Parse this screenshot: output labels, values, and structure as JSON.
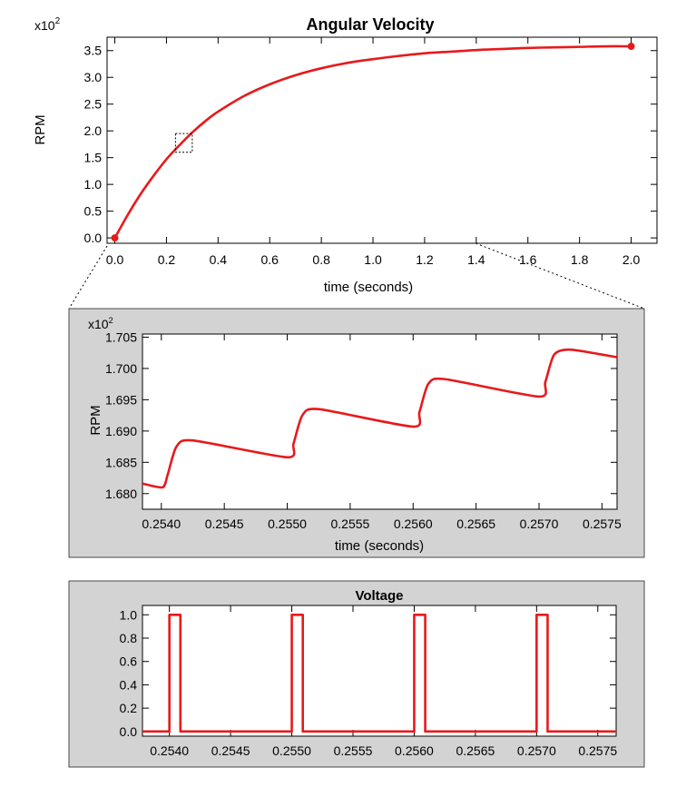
{
  "colors": {
    "series": "#e8191b",
    "panel_bg": "#d3d3d3",
    "panel_border": "#4a4a4a"
  },
  "chart_data": [
    {
      "type": "line",
      "title": "Angular Velocity",
      "xlabel": "time (seconds)",
      "ylabel": "RPM",
      "y_multiplier": "x10",
      "y_multiplier_exp": "2",
      "xlim": [
        -0.03,
        2.1
      ],
      "ylim": [
        -0.1,
        3.75
      ],
      "x_ticks": [
        0.0,
        0.2,
        0.4,
        0.6,
        0.8,
        1.0,
        1.2,
        1.4,
        1.6,
        1.8,
        2.0
      ],
      "y_ticks": [
        0.0,
        0.5,
        1.0,
        1.5,
        2.0,
        2.5,
        3.0,
        3.5
      ],
      "series": [
        {
          "x": [
            0.0,
            0.05,
            0.1,
            0.15,
            0.2,
            0.25,
            0.3,
            0.35,
            0.4,
            0.5,
            0.6,
            0.7,
            0.8,
            0.9,
            1.0,
            1.1,
            1.2,
            1.3,
            1.4,
            1.5,
            1.6,
            1.7,
            1.8,
            1.9,
            2.0
          ],
          "y": [
            0.0,
            0.43,
            0.82,
            1.16,
            1.47,
            1.73,
            1.97,
            2.18,
            2.36,
            2.65,
            2.87,
            3.04,
            3.17,
            3.27,
            3.34,
            3.4,
            3.45,
            3.48,
            3.51,
            3.53,
            3.55,
            3.56,
            3.57,
            3.58,
            3.58
          ]
        }
      ],
      "endpoints": [
        {
          "x": 0.0,
          "y": 0.0
        },
        {
          "x": 2.0,
          "y": 3.58
        }
      ],
      "zoom_box": {
        "x": [
          0.235,
          0.3
        ],
        "y": [
          1.6,
          1.95
        ]
      }
    },
    {
      "type": "line",
      "title": "",
      "xlabel": "time (seconds)",
      "ylabel": "RPM",
      "y_multiplier": "x10",
      "y_multiplier_exp": "2",
      "xlim": [
        0.25385,
        0.25762
      ],
      "ylim": [
        1.6775,
        1.7055
      ],
      "x_ticks": [
        "0.2540",
        "0.2545",
        "0.2550",
        "0.2555",
        "0.2560",
        "0.2565",
        "0.2570",
        "0.2575"
      ],
      "y_ticks": [
        "1.680",
        "1.685",
        "1.690",
        "1.695",
        "1.700",
        "1.705"
      ],
      "series": [
        {
          "x": [
            0.25385,
            0.25401,
            0.25405,
            0.25412,
            0.25425,
            0.255,
            0.25505,
            0.25512,
            0.25525,
            0.256,
            0.25605,
            0.25612,
            0.25625,
            0.257,
            0.25705,
            0.25712,
            0.25725,
            0.25762
          ],
          "y": [
            1.6816,
            1.681,
            1.683,
            1.6875,
            1.6885,
            1.6858,
            1.688,
            1.6925,
            1.6935,
            1.6907,
            1.693,
            1.6975,
            1.6983,
            1.6955,
            1.6978,
            1.7022,
            1.703,
            1.7018
          ]
        }
      ]
    },
    {
      "type": "line",
      "title": "Voltage",
      "xlabel": "",
      "ylabel": "",
      "xlim": [
        0.25378,
        0.25765
      ],
      "ylim": [
        -0.04,
        1.08
      ],
      "x_ticks": [
        "0.2540",
        "0.2545",
        "0.2550",
        "0.2555",
        "0.2560",
        "0.2565",
        "0.2570",
        "0.2575"
      ],
      "y_ticks": [
        "0.0",
        "0.2",
        "0.4",
        "0.6",
        "0.8",
        "1.0"
      ],
      "series": [
        {
          "x": [
            0.25378,
            0.254,
            0.254,
            0.25409,
            0.25409,
            0.255,
            0.255,
            0.25509,
            0.25509,
            0.256,
            0.256,
            0.25609,
            0.25609,
            0.257,
            0.257,
            0.25709,
            0.25709,
            0.25765
          ],
          "y": [
            0,
            0,
            1,
            1,
            0,
            0,
            1,
            1,
            0,
            0,
            1,
            1,
            0,
            0,
            1,
            1,
            0,
            0
          ]
        }
      ]
    }
  ]
}
